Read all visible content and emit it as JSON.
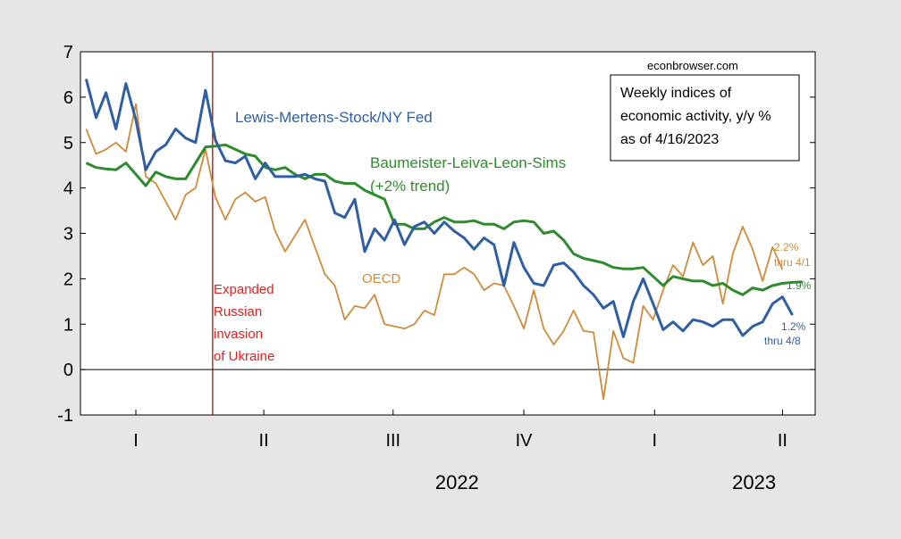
{
  "chart_data": {
    "type": "line",
    "ylim": [
      -1,
      7
    ],
    "yticks": [
      -1,
      0,
      1,
      2,
      3,
      4,
      5,
      6,
      7
    ],
    "x_range": [
      "2021-11-23",
      "2023-04-24"
    ],
    "quarter_ticks": [
      {
        "date": "2022-01-01",
        "label": "I"
      },
      {
        "date": "2022-04-01",
        "label": "II"
      },
      {
        "date": "2022-07-01",
        "label": "III"
      },
      {
        "date": "2022-10-01",
        "label": "IV"
      },
      {
        "date": "2023-01-01",
        "label": "I"
      },
      {
        "date": "2023-04-01",
        "label": "II"
      }
    ],
    "year_labels": [
      {
        "label": "2022",
        "date": "2022-08-15"
      },
      {
        "label": "2023",
        "date": "2023-03-12"
      }
    ],
    "info_box": {
      "source": "econbrowser.com",
      "lines": [
        "Weekly indices of",
        "economic activity, y/y %",
        "as of 4/16/2023"
      ]
    },
    "event": {
      "date": "2022-02-24",
      "color": "#990000",
      "label_color": "#e02020",
      "lines": [
        "Expanded",
        "Russian",
        "invasion",
        "of Ukraine"
      ]
    },
    "series": [
      {
        "name": "Lewis-Mertens-Stock/NY Fed",
        "color": "#2f5fa3",
        "label_color": "#2f5fa3",
        "end_labels": [
          "1.2%",
          "thru 4/8"
        ],
        "x": [
          "2021-11-27",
          "2021-12-04",
          "2021-12-11",
          "2021-12-18",
          "2021-12-25",
          "2022-01-01",
          "2022-01-08",
          "2022-01-15",
          "2022-01-22",
          "2022-01-29",
          "2022-02-05",
          "2022-02-12",
          "2022-02-19",
          "2022-02-26",
          "2022-03-05",
          "2022-03-12",
          "2022-03-19",
          "2022-03-26",
          "2022-04-02",
          "2022-04-09",
          "2022-04-16",
          "2022-04-23",
          "2022-04-30",
          "2022-05-07",
          "2022-05-14",
          "2022-05-21",
          "2022-05-28",
          "2022-06-04",
          "2022-06-11",
          "2022-06-18",
          "2022-06-25",
          "2022-07-02",
          "2022-07-09",
          "2022-07-16",
          "2022-07-23",
          "2022-07-30",
          "2022-08-06",
          "2022-08-13",
          "2022-08-20",
          "2022-08-27",
          "2022-09-03",
          "2022-09-10",
          "2022-09-17",
          "2022-09-24",
          "2022-10-01",
          "2022-10-08",
          "2022-10-15",
          "2022-10-22",
          "2022-10-29",
          "2022-11-05",
          "2022-11-12",
          "2022-11-19",
          "2022-11-26",
          "2022-12-03",
          "2022-12-10",
          "2022-12-17",
          "2022-12-24",
          "2022-12-31",
          "2023-01-07",
          "2023-01-14",
          "2023-01-21",
          "2023-01-28",
          "2023-02-04",
          "2023-02-11",
          "2023-02-18",
          "2023-02-25",
          "2023-03-04",
          "2023-03-11",
          "2023-03-18",
          "2023-03-25",
          "2023-04-01",
          "2023-04-08"
        ],
        "values": [
          6.4,
          5.55,
          6.1,
          5.3,
          6.3,
          5.5,
          4.4,
          4.8,
          4.95,
          5.3,
          5.1,
          5.0,
          6.15,
          5.05,
          4.6,
          4.55,
          4.7,
          4.2,
          4.55,
          4.25,
          4.25,
          4.25,
          4.3,
          4.2,
          4.15,
          3.45,
          3.35,
          3.75,
          2.6,
          3.1,
          2.85,
          3.3,
          2.75,
          3.15,
          3.25,
          3.0,
          3.25,
          3.05,
          2.9,
          2.65,
          2.9,
          2.75,
          1.85,
          2.8,
          2.25,
          1.9,
          1.85,
          2.3,
          2.35,
          2.15,
          1.85,
          1.65,
          1.35,
          1.5,
          0.72,
          1.5,
          2.0,
          1.45,
          0.88,
          1.05,
          0.85,
          1.1,
          1.05,
          0.95,
          1.1,
          1.1,
          0.75,
          0.95,
          1.05,
          1.45,
          1.6,
          1.2
        ]
      },
      {
        "name": "Baumeister-Leiva-Leon-Sims",
        "label_lines": [
          "Baumeister-Leiva-Leon-Sims",
          "(+2% trend)"
        ],
        "color": "#2e8b2e",
        "label_color": "#2e8b2e",
        "end_labels": [
          "1.9%"
        ],
        "x": [
          "2021-11-27",
          "2021-12-04",
          "2021-12-11",
          "2021-12-18",
          "2021-12-25",
          "2022-01-01",
          "2022-01-08",
          "2022-01-15",
          "2022-01-22",
          "2022-01-29",
          "2022-02-05",
          "2022-02-12",
          "2022-02-19",
          "2022-02-26",
          "2022-03-05",
          "2022-03-12",
          "2022-03-19",
          "2022-03-26",
          "2022-04-02",
          "2022-04-09",
          "2022-04-16",
          "2022-04-23",
          "2022-04-30",
          "2022-05-07",
          "2022-05-14",
          "2022-05-21",
          "2022-05-28",
          "2022-06-04",
          "2022-06-11",
          "2022-06-18",
          "2022-06-25",
          "2022-07-02",
          "2022-07-09",
          "2022-07-16",
          "2022-07-23",
          "2022-07-30",
          "2022-08-06",
          "2022-08-13",
          "2022-08-20",
          "2022-08-27",
          "2022-09-03",
          "2022-09-10",
          "2022-09-17",
          "2022-09-24",
          "2022-10-01",
          "2022-10-08",
          "2022-10-15",
          "2022-10-22",
          "2022-10-29",
          "2022-11-05",
          "2022-11-12",
          "2022-11-19",
          "2022-11-26",
          "2022-12-03",
          "2022-12-10",
          "2022-12-17",
          "2022-12-24",
          "2022-12-31",
          "2023-01-07",
          "2023-01-14",
          "2023-01-21",
          "2023-01-28",
          "2023-02-04",
          "2023-02-11",
          "2023-02-18",
          "2023-02-25",
          "2023-03-04",
          "2023-03-11",
          "2023-03-18",
          "2023-03-25",
          "2023-04-01",
          "2023-04-08",
          "2023-04-15"
        ],
        "values": [
          4.55,
          4.45,
          4.42,
          4.4,
          4.55,
          4.3,
          4.05,
          4.35,
          4.25,
          4.2,
          4.2,
          4.55,
          4.9,
          4.92,
          4.95,
          4.85,
          4.75,
          4.7,
          4.45,
          4.4,
          4.45,
          4.3,
          4.2,
          4.3,
          4.3,
          4.15,
          4.1,
          4.1,
          3.95,
          3.85,
          3.75,
          3.2,
          3.2,
          3.1,
          3.1,
          3.25,
          3.35,
          3.25,
          3.25,
          3.28,
          3.2,
          3.2,
          3.1,
          3.25,
          3.28,
          3.25,
          3.0,
          3.05,
          2.85,
          2.55,
          2.45,
          2.4,
          2.35,
          2.25,
          2.22,
          2.22,
          2.25,
          2.05,
          1.85,
          2.05,
          2.0,
          1.95,
          1.95,
          1.85,
          1.9,
          1.75,
          1.65,
          1.8,
          1.75,
          1.85,
          1.9,
          1.92,
          1.93
        ]
      },
      {
        "name": "OECD",
        "color": "#d08b3a",
        "label_color": "#d08b3a",
        "end_labels": [
          "2.2%",
          "thru 4/1"
        ],
        "x": [
          "2021-11-27",
          "2021-12-04",
          "2021-12-11",
          "2021-12-18",
          "2021-12-25",
          "2022-01-01",
          "2022-01-08",
          "2022-01-15",
          "2022-01-22",
          "2022-01-29",
          "2022-02-05",
          "2022-02-12",
          "2022-02-19",
          "2022-02-26",
          "2022-03-05",
          "2022-03-12",
          "2022-03-19",
          "2022-03-26",
          "2022-04-02",
          "2022-04-09",
          "2022-04-16",
          "2022-04-23",
          "2022-04-30",
          "2022-05-07",
          "2022-05-14",
          "2022-05-21",
          "2022-05-28",
          "2022-06-04",
          "2022-06-11",
          "2022-06-18",
          "2022-06-25",
          "2022-07-02",
          "2022-07-09",
          "2022-07-16",
          "2022-07-23",
          "2022-07-30",
          "2022-08-06",
          "2022-08-13",
          "2022-08-20",
          "2022-08-27",
          "2022-09-03",
          "2022-09-10",
          "2022-09-17",
          "2022-09-24",
          "2022-10-01",
          "2022-10-08",
          "2022-10-15",
          "2022-10-22",
          "2022-10-29",
          "2022-11-05",
          "2022-11-12",
          "2022-11-19",
          "2022-11-26",
          "2022-12-03",
          "2022-12-10",
          "2022-12-17",
          "2022-12-24",
          "2022-12-31",
          "2023-01-07",
          "2023-01-14",
          "2023-01-21",
          "2023-01-28",
          "2023-02-04",
          "2023-02-11",
          "2023-02-18",
          "2023-02-25",
          "2023-03-04",
          "2023-03-11",
          "2023-03-18",
          "2023-03-25",
          "2023-04-01"
        ],
        "values": [
          5.3,
          4.75,
          4.85,
          5.0,
          4.8,
          5.85,
          4.25,
          4.1,
          3.7,
          3.3,
          3.85,
          4.0,
          4.85,
          3.8,
          3.3,
          3.75,
          3.9,
          3.7,
          3.8,
          3.05,
          2.6,
          2.95,
          3.3,
          2.7,
          2.1,
          1.85,
          1.1,
          1.4,
          1.35,
          1.65,
          1.0,
          0.95,
          0.9,
          1.0,
          1.3,
          1.2,
          2.1,
          2.1,
          2.25,
          2.1,
          1.75,
          1.9,
          1.85,
          1.4,
          0.9,
          1.75,
          0.9,
          0.55,
          0.85,
          1.3,
          0.85,
          0.82,
          -0.65,
          0.85,
          0.25,
          0.15,
          1.4,
          1.1,
          1.75,
          2.3,
          2.05,
          2.8,
          2.3,
          2.5,
          1.45,
          2.55,
          3.15,
          2.65,
          1.95,
          2.7,
          2.2
        ]
      }
    ],
    "series_labels_text": {
      "oecd": "OECD"
    }
  }
}
